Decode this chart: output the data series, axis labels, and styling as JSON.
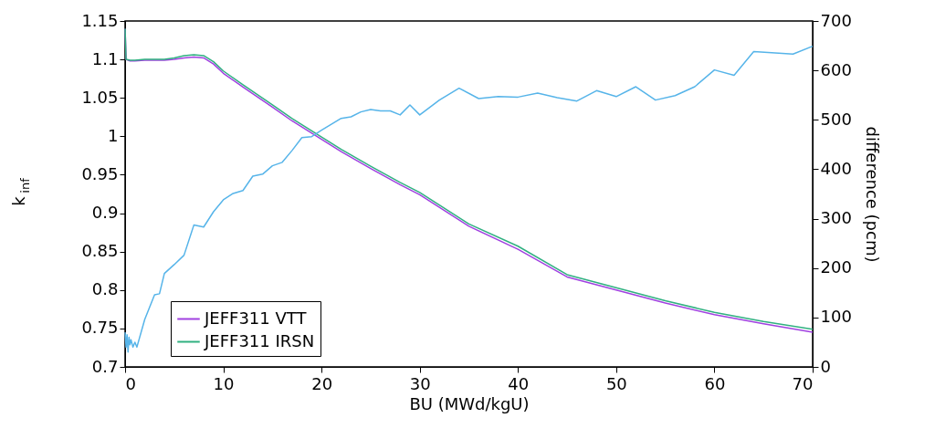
{
  "chart_data": {
    "type": "line",
    "xlabel": "BU (MWd/kgU)",
    "ylabel": "k$_{inf}$",
    "y2label": "difference (pcm)",
    "xlim": [
      0,
      70
    ],
    "xticks": [
      0,
      10,
      20,
      30,
      40,
      50,
      60,
      70
    ],
    "ylim": [
      0.7,
      1.15
    ],
    "yticks": [
      0.7,
      0.75,
      0.8,
      0.85,
      0.9,
      0.95,
      1,
      1.05,
      1.1,
      1.15
    ],
    "y2lim": [
      0,
      700
    ],
    "y2ticks": [
      0,
      100,
      200,
      300,
      400,
      500,
      600,
      700
    ],
    "legend": "bottom left",
    "grid": false,
    "marker": "none",
    "line_style": "solid",
    "series": [
      {
        "name": "JEFF311 VTT",
        "color": "#a040e0",
        "x": [
          0,
          0.1,
          0.5,
          1,
          2,
          4,
          5,
          6,
          7,
          8,
          9,
          10,
          12,
          15,
          17,
          20,
          22,
          25,
          28,
          30,
          35,
          40,
          45,
          50,
          55,
          60,
          65,
          70
        ],
        "values": [
          1.14,
          1.1,
          1.098,
          1.098,
          1.099,
          1.099,
          1.1,
          1.102,
          1.103,
          1.102,
          1.094,
          1.082,
          1.064,
          1.038,
          1.02,
          0.996,
          0.98,
          0.958,
          0.937,
          0.924,
          0.883,
          0.853,
          0.817,
          0.8,
          0.783,
          0.768,
          0.756,
          0.745
        ]
      },
      {
        "name": "JEFF311 IRSN",
        "color": "#30b080",
        "x": [
          0,
          0.1,
          0.5,
          1,
          2,
          4,
          5,
          6,
          7,
          8,
          9,
          10,
          12,
          15,
          17,
          20,
          22,
          25,
          28,
          30,
          35,
          40,
          45,
          50,
          55,
          60,
          65,
          70
        ],
        "values": [
          1.14,
          1.1,
          1.099,
          1.099,
          1.1,
          1.1,
          1.102,
          1.105,
          1.106,
          1.105,
          1.097,
          1.085,
          1.067,
          1.041,
          1.023,
          0.999,
          0.983,
          0.961,
          0.94,
          0.927,
          0.886,
          0.857,
          0.82,
          0.803,
          0.786,
          0.771,
          0.759,
          0.749
        ]
      },
      {
        "color": "#56b4e9",
        "axis": "y2",
        "x": [
          0,
          0.1,
          0.2,
          0.3,
          0.4,
          0.5,
          0.6,
          0.8,
          1,
          1.2,
          2,
          3,
          3.5,
          4,
          5,
          6,
          7,
          8,
          9,
          10,
          11,
          12,
          13,
          14,
          15,
          16,
          17,
          18,
          19,
          20,
          22,
          23,
          24,
          25,
          26,
          27,
          28,
          29,
          30,
          32,
          34,
          36,
          38,
          40,
          42,
          44,
          46,
          48,
          50,
          52,
          54,
          56,
          58,
          60,
          62,
          64,
          68,
          70
        ],
        "values": [
          70,
          40,
          65,
          30,
          60,
          45,
          55,
          40,
          50,
          40,
          96,
          146,
          148,
          189,
          207,
          226,
          287,
          283,
          314,
          338,
          351,
          357,
          386,
          390,
          407,
          414,
          438,
          464,
          466,
          479,
          503,
          506,
          516,
          521,
          518,
          518,
          510,
          530,
          510,
          540,
          564,
          543,
          547,
          546,
          554,
          545,
          538,
          559,
          547,
          567,
          540,
          549,
          567,
          601,
          590,
          638,
          633,
          649
        ]
      }
    ]
  }
}
